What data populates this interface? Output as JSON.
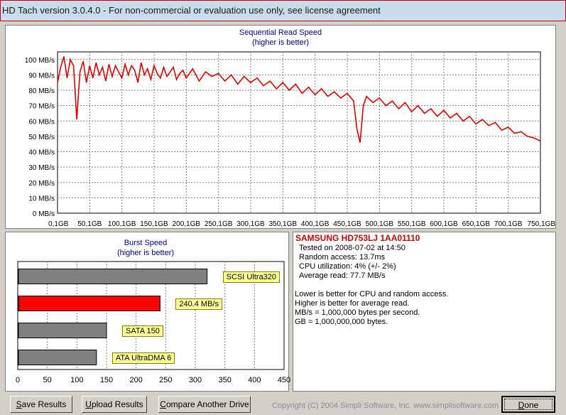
{
  "window": {
    "title": "HD Tach version 3.0.4.0  - For non-commercial or evaluation use only, see license agreement"
  },
  "seq_chart": {
    "title": "Sequential Read Speed",
    "subtitle": "(higher is better)"
  },
  "burst_chart": {
    "title": "Burst Speed",
    "subtitle": "(higher is better)"
  },
  "chart_data": [
    {
      "type": "line",
      "title": "Sequential Read Speed",
      "subtitle": "(higher is better)",
      "xlabel": "",
      "ylabel": "",
      "ylim": [
        0,
        105
      ],
      "xlim": [
        0.1,
        750.1
      ],
      "grid": true,
      "y_ticks": [
        "0 MB/s",
        "10 MB/s",
        "20 MB/s",
        "30 MB/s",
        "40 MB/s",
        "50 MB/s",
        "60 MB/s",
        "70 MB/s",
        "80 MB/s",
        "90 MB/s",
        "100 MB/s"
      ],
      "x_ticks": [
        "0,1GB",
        "50,1GB",
        "100,1GB",
        "150,1GB",
        "200,1GB",
        "250,1GB",
        "300,1GB",
        "350,1GB",
        "400,1GB",
        "450,1GB",
        "500,1GB",
        "550,1GB",
        "600,1GB",
        "650,1GB",
        "700,1GB",
        "750,1GB"
      ],
      "line_color": "#dd0000",
      "series": [
        {
          "x": [
            0.1,
            5,
            10,
            15,
            20,
            25,
            30,
            35,
            40,
            45,
            50,
            55,
            60,
            65,
            70,
            75,
            80,
            85,
            90,
            95,
            100,
            105,
            110,
            115,
            120,
            125,
            130,
            135,
            140,
            145,
            150,
            155,
            160,
            165,
            170,
            175,
            180,
            185,
            190,
            195,
            200,
            210,
            220,
            230,
            240,
            250,
            260,
            270,
            280,
            290,
            300,
            310,
            320,
            330,
            340,
            350,
            360,
            370,
            380,
            390,
            400,
            410,
            420,
            430,
            440,
            450,
            460,
            465,
            470,
            475,
            480,
            490,
            500,
            510,
            520,
            530,
            540,
            550,
            560,
            570,
            580,
            590,
            600,
            610,
            620,
            630,
            640,
            650,
            660,
            670,
            680,
            690,
            700,
            710,
            720,
            730,
            740,
            750.1
          ],
          "y": [
            85,
            95,
            102,
            88,
            100,
            96,
            61,
            92,
            99,
            85,
            96,
            88,
            98,
            90,
            95,
            86,
            97,
            89,
            96,
            92,
            88,
            97,
            90,
            96,
            93,
            85,
            98,
            90,
            94,
            87,
            96,
            91,
            88,
            95,
            89,
            92,
            95,
            87,
            91,
            93,
            88,
            94,
            86,
            92,
            89,
            91,
            86,
            90,
            84,
            89,
            85,
            88,
            83,
            86,
            81,
            85,
            80,
            84,
            78,
            82,
            77,
            81,
            76,
            79,
            75,
            78,
            73,
            55,
            46,
            70,
            76,
            72,
            75,
            70,
            73,
            68,
            72,
            66,
            70,
            65,
            68,
            63,
            67,
            62,
            65,
            60,
            63,
            58,
            61,
            57,
            59,
            54,
            56,
            52,
            53,
            50,
            49,
            47
          ]
        }
      ]
    },
    {
      "type": "bar",
      "title": "Burst Speed",
      "subtitle": "(higher is better)",
      "orientation": "horizontal",
      "xlabel": "",
      "ylabel": "",
      "xlim": [
        0,
        450
      ],
      "x_ticks": [
        "0",
        "50",
        "100",
        "150",
        "200",
        "250",
        "300",
        "350",
        "400",
        "450"
      ],
      "categories": [
        "SCSI Ultra320",
        "240.4 MB/s",
        "SATA 150",
        "ATA UltraDMA 6"
      ],
      "values": [
        320,
        240.4,
        150,
        133
      ],
      "colors": [
        "#808080",
        "#ff0000",
        "#808080",
        "#808080"
      ]
    }
  ],
  "info": {
    "drive": "SAMSUNG HD753LJ 1AA01110",
    "lines": [
      "Tested on 2008-07-02 at 14:50",
      "Random access: 13.7ms",
      "CPU utilization: 4% (+/- 2%)",
      "Average read: 77.7 MB/s"
    ],
    "notes": [
      "Lower is better for CPU and random access.",
      "Higher is better for average read.",
      "MB/s = 1,000,000 bytes per second.",
      "GB = 1,000,000,000 bytes."
    ]
  },
  "buttons": {
    "save": {
      "u": "S",
      "rest": "ave Results"
    },
    "upload": {
      "u": "U",
      "rest": "pload Results"
    },
    "compare": {
      "u": "C",
      "rest": "ompare Another Drive"
    },
    "done": {
      "u": "D",
      "rest": "one"
    }
  },
  "copyright": "Copyright (C) 2004 Simpli Software, Inc. www.simplisoftware.com"
}
